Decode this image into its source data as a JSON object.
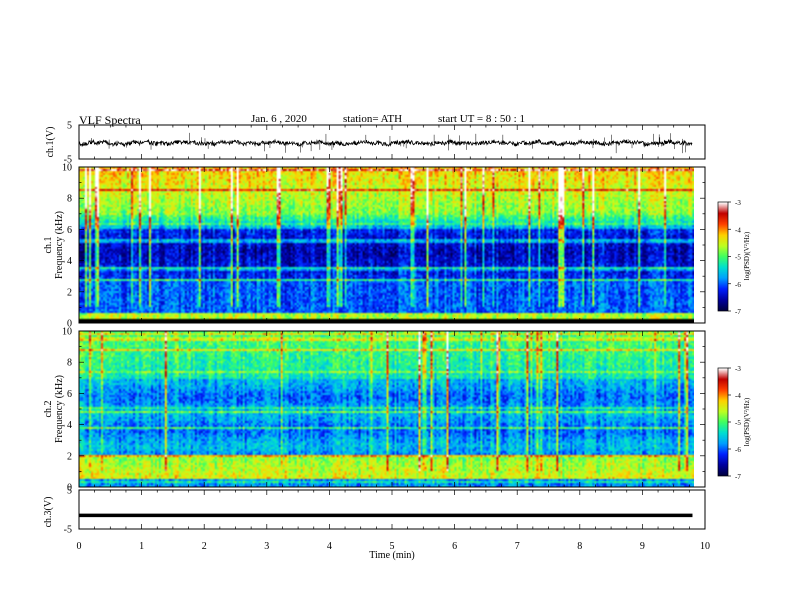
{
  "header": {
    "title": "VLF Spectra",
    "date": "Jan. 6 , 2020",
    "station": "station= ATH",
    "start_ut": "start UT = 8 : 50 : 1"
  },
  "axes": {
    "xlabel": "Time (min)",
    "ch1_voltage_label": "ch.1(V)",
    "ch3_voltage_label": "ch.3(V)",
    "ch1_freq_label": "ch.1",
    "ch2_freq_label": "ch.2",
    "freq_label": "Frequency (kHz)",
    "colorbar_label": "log(PSD)(V²/Hz)",
    "colorbar_label_ch2": "log(PSD)(V²/Hz)"
  },
  "colors": {
    "ink": "#000000",
    "cmap": [
      "#000040",
      "#0000a0",
      "#0020ff",
      "#00a0ff",
      "#00e0d0",
      "#40ff60",
      "#c0ff20",
      "#ffd000",
      "#ff4000",
      "#c00000",
      "#ffffff"
    ]
  },
  "chart_data": [
    {
      "type": "line",
      "name": "ch1-voltage",
      "ylabel": "ch.1(V)",
      "xlim": [
        0,
        10
      ],
      "ylim": [
        -5,
        5
      ],
      "yticks": [
        -5,
        5
      ],
      "x_extent": [
        0,
        9.8
      ],
      "baseline": -0.3,
      "noise_amplitude": 0.6,
      "spike_amplitude": 3
    },
    {
      "type": "heatmap",
      "name": "ch1-spectrogram",
      "ylabel": "Frequency (kHz)",
      "xlim": [
        0,
        10
      ],
      "ylim": [
        0,
        10
      ],
      "yticks": [
        0,
        2,
        4,
        6,
        8,
        10
      ],
      "x_extent": [
        0,
        9.8
      ],
      "colorbar": {
        "label": "log(PSD)(V²/Hz)",
        "range": [
          -7,
          -3
        ],
        "ticks": [
          -7,
          -6,
          -5,
          -4,
          -3
        ]
      }
    },
    {
      "type": "heatmap",
      "name": "ch2-spectrogram",
      "ylabel": "Frequency (kHz)",
      "xlim": [
        0,
        10
      ],
      "ylim": [
        0,
        10
      ],
      "yticks": [
        0,
        2,
        4,
        6,
        8,
        10
      ],
      "x_extent": [
        0,
        9.8
      ],
      "colorbar": {
        "label": "log(PSD)(V²/Hz)",
        "range": [
          -7,
          -3
        ],
        "ticks": [
          -7,
          -6,
          -5,
          -4,
          -3
        ]
      }
    },
    {
      "type": "line",
      "name": "ch3-voltage",
      "ylabel": "ch.3(V)",
      "xlim": [
        0,
        10
      ],
      "ylim": [
        -5,
        5
      ],
      "yticks": [
        -5,
        5
      ],
      "x_extent": [
        0,
        9.8
      ],
      "constant_value": -1.5,
      "xlabel": "Time (min)",
      "xticks": [
        0,
        1,
        2,
        3,
        4,
        5,
        6,
        7,
        8,
        9,
        10
      ]
    }
  ]
}
